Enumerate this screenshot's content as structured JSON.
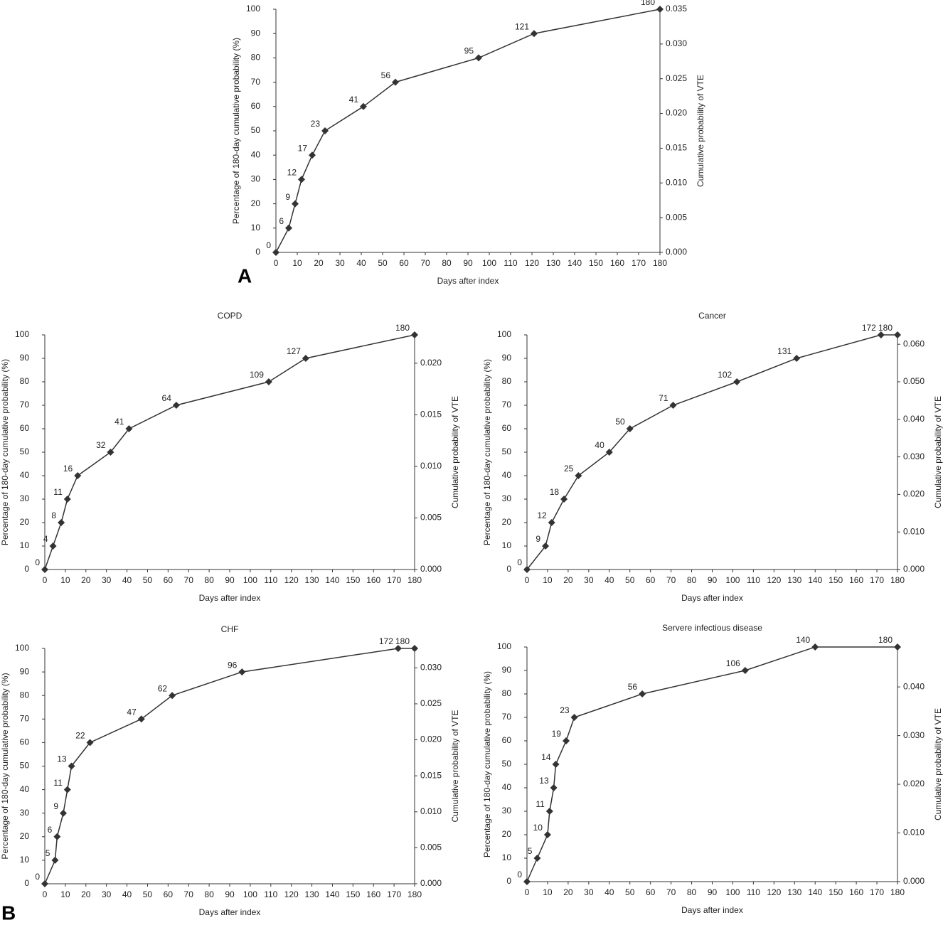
{
  "figure": {
    "panel_labels": [
      "A",
      "B"
    ]
  },
  "chart_data": [
    {
      "type": "line",
      "xlabel": "Days after index",
      "ylabel": "Percentage of 180-day cumulative probability (%)",
      "y2label": "Cumulative probability of VTE",
      "color": "#333333",
      "x": [
        0,
        6,
        9,
        12,
        17,
        23,
        41,
        56,
        95,
        121,
        180
      ],
      "values": [
        0,
        10,
        20,
        30,
        40,
        50,
        60,
        70,
        80,
        90,
        100
      ],
      "xlim": [
        0,
        180
      ],
      "xticks": [
        0,
        10,
        20,
        30,
        40,
        50,
        60,
        70,
        80,
        90,
        100,
        110,
        120,
        130,
        140,
        150,
        160,
        170,
        180
      ],
      "ylim": [
        0,
        100
      ],
      "yticks": [
        0,
        10,
        20,
        30,
        40,
        50,
        60,
        70,
        80,
        90,
        100
      ],
      "y2lim": [
        0,
        0.035
      ],
      "y2ticks": [
        {
          "value": 0,
          "label": "0.000"
        },
        {
          "value": 0.005,
          "label": "0.005"
        },
        {
          "value": 0.01,
          "label": "0.010"
        },
        {
          "value": 0.015,
          "label": "0.015"
        },
        {
          "value": 0.02,
          "label": "0.020"
        },
        {
          "value": 0.025,
          "label": "0.025"
        },
        {
          "value": 0.03,
          "label": "0.030"
        },
        {
          "value": 0.035,
          "label": "0.035"
        }
      ]
    },
    {
      "type": "line",
      "title": "COPD",
      "xlabel": "Days after index",
      "ylabel": "Percentage of 180-day cumulative probability (%)",
      "y2label": "Cumulative probability of VTE",
      "color": "#333333",
      "x": [
        0,
        4,
        8,
        11,
        16,
        32,
        41,
        64,
        109,
        127,
        180
      ],
      "values": [
        0,
        10,
        20,
        30,
        40,
        50,
        60,
        70,
        80,
        90,
        100
      ],
      "xlim": [
        0,
        180
      ],
      "xticks": [
        0,
        10,
        20,
        30,
        40,
        50,
        60,
        70,
        80,
        90,
        100,
        110,
        120,
        130,
        140,
        150,
        160,
        170,
        180
      ],
      "ylim": [
        0,
        100
      ],
      "yticks": [
        0,
        10,
        20,
        30,
        40,
        50,
        60,
        70,
        80,
        90,
        100
      ],
      "y2lim": [
        0,
        0.02275
      ],
      "y2ticks": [
        {
          "value": 0,
          "label": "0.000"
        },
        {
          "value": 0.005,
          "label": "0.005"
        },
        {
          "value": 0.01,
          "label": "0.010"
        },
        {
          "value": 0.015,
          "label": "0.015"
        },
        {
          "value": 0.02,
          "label": "0.020"
        }
      ]
    },
    {
      "type": "line",
      "title": "Cancer",
      "xlabel": "Days after index",
      "ylabel": "Percentage of 180-day cumulative probability (%)",
      "y2label": "Cumulative probability of VTE",
      "color": "#333333",
      "x": [
        0,
        9,
        12,
        18,
        25,
        40,
        50,
        71,
        102,
        131,
        172,
        180
      ],
      "values": [
        0,
        10,
        20,
        30,
        40,
        50,
        60,
        70,
        80,
        90,
        100,
        100
      ],
      "xlim": [
        0,
        180
      ],
      "xticks": [
        0,
        10,
        20,
        30,
        40,
        50,
        60,
        70,
        80,
        90,
        100,
        110,
        120,
        130,
        140,
        150,
        160,
        170,
        180
      ],
      "ylim": [
        0,
        100
      ],
      "yticks": [
        0,
        10,
        20,
        30,
        40,
        50,
        60,
        70,
        80,
        90,
        100
      ],
      "y2lim": [
        0,
        0.0625
      ],
      "y2ticks": [
        {
          "value": 0,
          "label": "0.000"
        },
        {
          "value": 0.01,
          "label": "0.010"
        },
        {
          "value": 0.02,
          "label": "0.020"
        },
        {
          "value": 0.03,
          "label": "0.030"
        },
        {
          "value": 0.04,
          "label": "0.040"
        },
        {
          "value": 0.05,
          "label": "0.050"
        },
        {
          "value": 0.06,
          "label": "0.060"
        }
      ]
    },
    {
      "type": "line",
      "title": "CHF",
      "xlabel": "Days after index",
      "ylabel": "Percentage of 180-day cumulative probability (%)",
      "y2label": "Cumulative probability of VTE",
      "color": "#333333",
      "x": [
        0,
        5,
        6,
        9,
        11,
        13,
        22,
        47,
        62,
        96,
        172,
        180
      ],
      "values": [
        0,
        10,
        20,
        30,
        40,
        50,
        60,
        70,
        80,
        90,
        100,
        100
      ],
      "xlim": [
        0,
        180
      ],
      "xticks": [
        0,
        10,
        20,
        30,
        40,
        50,
        60,
        70,
        80,
        90,
        100,
        110,
        120,
        130,
        140,
        150,
        160,
        170,
        180
      ],
      "ylim": [
        0,
        100
      ],
      "yticks": [
        0,
        10,
        20,
        30,
        40,
        50,
        60,
        70,
        80,
        90,
        100
      ],
      "y2lim": [
        0,
        0.0327
      ],
      "y2ticks": [
        {
          "value": 0,
          "label": "0.000"
        },
        {
          "value": 0.005,
          "label": "0.005"
        },
        {
          "value": 0.01,
          "label": "0.010"
        },
        {
          "value": 0.015,
          "label": "0.015"
        },
        {
          "value": 0.02,
          "label": "0.020"
        },
        {
          "value": 0.025,
          "label": "0.025"
        },
        {
          "value": 0.03,
          "label": "0.030"
        }
      ]
    },
    {
      "type": "line",
      "title": "Servere infectious disease",
      "xlabel": "Days after index",
      "ylabel": "Percentage of 180-day cumulative probability (%)",
      "y2label": "Cumulative probability of VTE",
      "color": "#333333",
      "x": [
        0,
        5,
        10,
        11,
        13,
        14,
        19,
        23,
        56,
        106,
        140,
        180
      ],
      "values": [
        0,
        10,
        20,
        30,
        40,
        50,
        60,
        70,
        80,
        90,
        100,
        100
      ],
      "xlim": [
        0,
        180
      ],
      "xticks": [
        0,
        10,
        20,
        30,
        40,
        50,
        60,
        70,
        80,
        90,
        100,
        110,
        120,
        130,
        140,
        150,
        160,
        170,
        180
      ],
      "ylim": [
        0,
        100
      ],
      "yticks": [
        0,
        10,
        20,
        30,
        40,
        50,
        60,
        70,
        80,
        90,
        100
      ],
      "y2lim": [
        0,
        0.0482
      ],
      "y2ticks": [
        {
          "value": 0,
          "label": "0.000"
        },
        {
          "value": 0.01,
          "label": "0.010"
        },
        {
          "value": 0.02,
          "label": "0.020"
        },
        {
          "value": 0.03,
          "label": "0.030"
        },
        {
          "value": 0.04,
          "label": "0.040"
        }
      ]
    }
  ]
}
